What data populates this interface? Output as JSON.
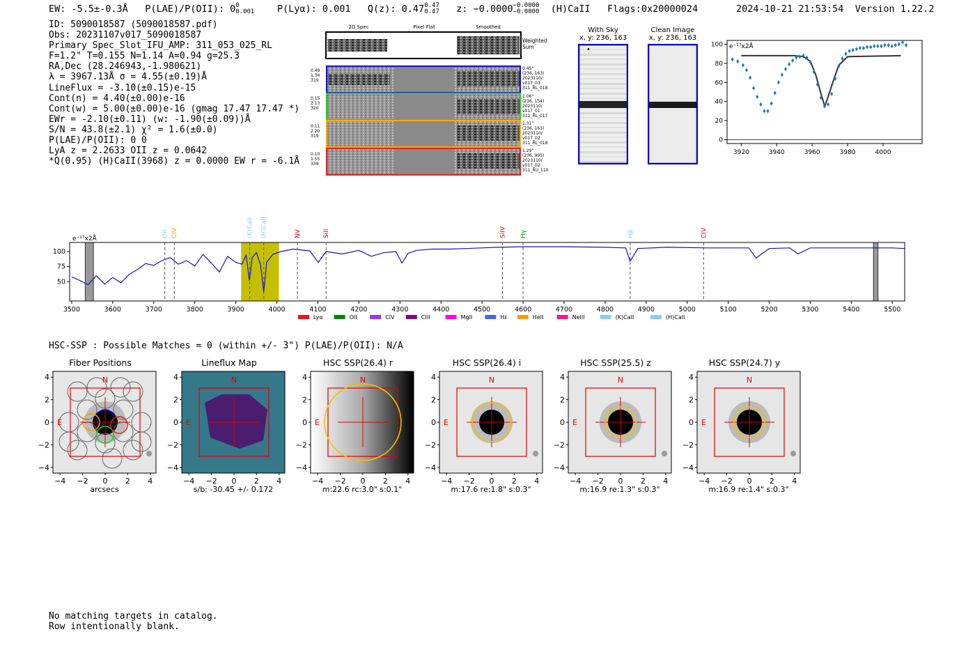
{
  "header": {
    "ew": "EW: -5.5±-0.3Å",
    "plae_poii": "P(LAE)/P(OII): 0",
    "plae_sup": "0",
    "plae_sub": "0.001",
    "plya": "P(Lyα): 0.001",
    "qz": "Q(z): 0.47",
    "qz_sup": "0.47",
    "qz_sub": "0.47",
    "z": "z: −0.0000",
    "z_sup": "−0.0000",
    "z_sub": "−0.0000",
    "line": "(H)CaII",
    "flags": "Flags:0x20000024",
    "timestamp": "2024-10-21 21:53:54",
    "version": "Version 1.22.2"
  },
  "info": {
    "lines": [
      "ID: 5090018587 (5090018587.pdf)",
      "Obs: 20231107v017_5090018587",
      "Primary Spec_Slot_IFU_AMP: 311_053_025_RL",
      "F=1.2\"  T=0.155  N=1.14  A=0.94  g=25.3",
      "RA,Dec (28.246943,-1.980621)",
      "λ = 3967.13Å  σ = 4.55(±0.19)Å",
      "LineFlux = -3.10(±0.15)e-15",
      "Cont(n) = 4.40(±0.00)e-16",
      "Cont(w) = 5.00(±0.00)e-16 (gmag 17.47 17.47 *)",
      "EWr = -2.10(±0.11) (w: -1.90(±0.09))Å",
      "S/N = 43.8(±2.1)  χ² = 1.6(±0.0)",
      "P(LAE)/P(OII): 0 0",
      "LyA z = 2.2633  OII z = 0.0642",
      "*Q(0.95) (H)CaII(3968) z = 0.0000  EW r = -6.1Å"
    ]
  },
  "strips": {
    "col_labels": [
      "2D Spec",
      "Pixel Flat",
      "Smoothed"
    ],
    "weighted_label": "Weighted Sum",
    "rows": [
      {
        "left": [
          "0.49",
          "1.34",
          "319"
        ],
        "right": [
          "0.45\"",
          "(236, 163)",
          "2023110/",
          "v017_03",
          "311_RL_018"
        ],
        "color": "#0000cc"
      },
      {
        "left": [
          "0.15",
          "2.13",
          "320"
        ],
        "right": [
          "1.06\"",
          "(236, 154)",
          "2023110/",
          "v017_01",
          "311_RL_017"
        ],
        "color": "#22bb22"
      },
      {
        "left": [
          "0.11",
          "2.20",
          "319"
        ],
        "right": [
          "1.31\"",
          "(236, 163)",
          "2023110/",
          "v017_02",
          "311_RL_018"
        ],
        "color": "#ff9900"
      },
      {
        "left": [
          "0.10",
          "1.55",
          "339"
        ],
        "right": [
          "1.29\"",
          "(236, 995)",
          "2023110/",
          "v017_02",
          "311_RU_110"
        ],
        "color": "#dd2222"
      }
    ]
  },
  "sky": {
    "with_sky_title": "With Sky",
    "with_sky_xy": "x, y: 236, 163",
    "clean_title": "Clean Image",
    "clean_xy": "x, y: 236, 163"
  },
  "chart_data": [
    {
      "type": "scatter",
      "title": "",
      "ylabel": "e⁻¹⁷x2Å",
      "xlim": [
        3912,
        4022
      ],
      "ylim": [
        -4,
        104
      ],
      "xticks": [
        3920,
        3940,
        3960,
        3980,
        4000
      ],
      "yticks": [
        0,
        20,
        40,
        60,
        80,
        100
      ],
      "points_x": [
        3915,
        3918,
        3921,
        3923,
        3925,
        3927,
        3929,
        3931,
        3933,
        3935,
        3937,
        3939,
        3941,
        3943,
        3945,
        3947,
        3949,
        3951,
        3953,
        3955,
        3957,
        3959,
        3961,
        3963,
        3965,
        3967,
        3969,
        3971,
        3973,
        3975,
        3977,
        3979,
        3981,
        3983,
        3985,
        3987,
        3989,
        3991,
        3993,
        3995,
        3997,
        3999,
        4001,
        4003,
        4005,
        4007,
        4009,
        4011,
        4013
      ],
      "points_y": [
        84,
        82,
        78,
        73,
        65,
        54,
        45,
        37,
        30,
        30,
        38,
        49,
        60,
        68,
        74,
        79,
        83,
        86,
        87,
        88,
        86,
        81,
        71,
        58,
        44,
        35,
        37,
        48,
        64,
        77,
        85,
        90,
        93,
        94,
        95,
        96,
        96,
        97,
        97,
        98,
        98,
        98,
        99,
        99,
        98,
        99,
        100,
        102,
        99
      ],
      "fit_x": [
        3920,
        3940,
        3950,
        3955,
        3959,
        3962,
        3965,
        3967.13,
        3969,
        3972,
        3975,
        3980,
        4010
      ],
      "fit_y": [
        88,
        88,
        88,
        87,
        82,
        68,
        48,
        35,
        45,
        62,
        78,
        87,
        88
      ]
    },
    {
      "type": "line",
      "title": "",
      "ylabel": "e⁻¹⁷x2Å",
      "xlim": [
        3495,
        5530
      ],
      "ylim": [
        18,
        115
      ],
      "xticks": [
        3500,
        3600,
        3700,
        3800,
        3900,
        4000,
        4100,
        4200,
        4300,
        4400,
        4500,
        4600,
        4700,
        4800,
        4900,
        5000,
        5100,
        5200,
        5300,
        5400,
        5500
      ],
      "yticks": [
        50,
        75,
        100
      ],
      "x": [
        3500,
        3520,
        3540,
        3560,
        3580,
        3600,
        3620,
        3640,
        3660,
        3680,
        3700,
        3720,
        3740,
        3760,
        3780,
        3800,
        3820,
        3840,
        3860,
        3880,
        3900,
        3915,
        3925,
        3933,
        3940,
        3950,
        3960,
        3968,
        3975,
        3990,
        4010,
        4040,
        4080,
        4101,
        4120,
        4160,
        4200,
        4230,
        4260,
        4290,
        4305,
        4320,
        4340,
        4380,
        4420,
        4460,
        4500,
        4540,
        4600,
        4700,
        4800,
        4850,
        4861,
        4880,
        4950,
        5050,
        5150,
        5168,
        5183,
        5200,
        5250,
        5270,
        5300,
        5400,
        5500,
        5530
      ],
      "y": [
        58,
        52,
        45,
        60,
        46,
        57,
        48,
        62,
        70,
        80,
        77,
        85,
        90,
        79,
        85,
        76,
        95,
        81,
        66,
        92,
        82,
        79,
        94,
        52,
        90,
        98,
        79,
        33,
        82,
        95,
        100,
        104,
        101,
        82,
        100,
        96,
        102,
        92,
        98,
        100,
        81,
        97,
        102,
        104,
        104,
        105,
        106,
        107,
        108,
        108,
        107,
        106,
        84,
        105,
        107,
        106,
        106,
        89,
        97,
        105,
        106,
        96,
        106,
        106,
        106,
        105
      ],
      "highlight_band": [
        3913,
        4005
      ],
      "masked_regions": [
        [
          3533,
          3553
        ],
        [
          5454,
          5465
        ]
      ],
      "line_markers": [
        {
          "label": "OII",
          "wave": 3727,
          "color": "#87cefa"
        },
        {
          "label": "CIV",
          "wave": 3750,
          "color": "#ff9900"
        },
        {
          "label": "(K)CaII",
          "wave": 3934,
          "color": "#87cefa"
        },
        {
          "label": "(H)CaII",
          "wave": 3968,
          "color": "#87cefa"
        },
        {
          "label": "NV",
          "wave": 4050,
          "color": "#dd0000"
        },
        {
          "label": "SiII",
          "wave": 4120,
          "color": "#dd0000"
        },
        {
          "label": "SiIV",
          "wave": 4550,
          "color": "#dd0000"
        },
        {
          "label": "Hγ",
          "wave": 4600,
          "color": "#009900"
        },
        {
          "label": "Hβ",
          "wave": 4861,
          "color": "#87cefa"
        },
        {
          "label": "CIV",
          "wave": 5040,
          "color": "#dd0000"
        }
      ],
      "legend": [
        {
          "label": "Lyα",
          "color": "#ee1111"
        },
        {
          "label": "OII",
          "color": "#008800"
        },
        {
          "label": "CIV",
          "color": "#9933ff"
        },
        {
          "label": "CIII",
          "color": "#880088"
        },
        {
          "label": "MgII",
          "color": "#ff00ff"
        },
        {
          "label": "Hε",
          "color": "#4466ee"
        },
        {
          "label": "HeII",
          "color": "#ff9900"
        },
        {
          "label": "NeIII",
          "color": "#ff1493"
        },
        {
          "label": "(K)CaII",
          "color": "#87cefa"
        },
        {
          "label": "(H)CaII",
          "color": "#87cefa"
        }
      ]
    }
  ],
  "hsc": {
    "summary": "HSC-SSP : Possible Matches = 0 (within +/- 3\")  P(LAE)/P(OII): N/A",
    "panels": [
      {
        "title": "Fiber Positions",
        "caption": "arcsecs"
      },
      {
        "title": "Lineflux Map",
        "caption": "s/b: -30.45 +/- 0.172"
      },
      {
        "title": "HSC SSP(26.4) r",
        "caption": "m:22.6  rc:3.0\"  s:0.1\""
      },
      {
        "title": "HSC SSP(26.4) i",
        "caption": "m:17.6  re:1.8\"  s:0.3\""
      },
      {
        "title": "HSC SSP(25.5) z",
        "caption": "m:16.9  re:1.3\"  s:0.3\""
      },
      {
        "title": "HSC SSP(24.7) y",
        "caption": "m:16.9  re:1.4\"  s:0.3\""
      }
    ],
    "tick_labels": [
      "4",
      "2",
      "0",
      "−2",
      "−4"
    ],
    "x_tick_labels": [
      "−4",
      "−2",
      "0",
      "2",
      "4"
    ],
    "north": "N",
    "east": "E"
  },
  "footer": {
    "line1": "No matching targets in catalog.",
    "line2": "Row intentionally blank."
  }
}
